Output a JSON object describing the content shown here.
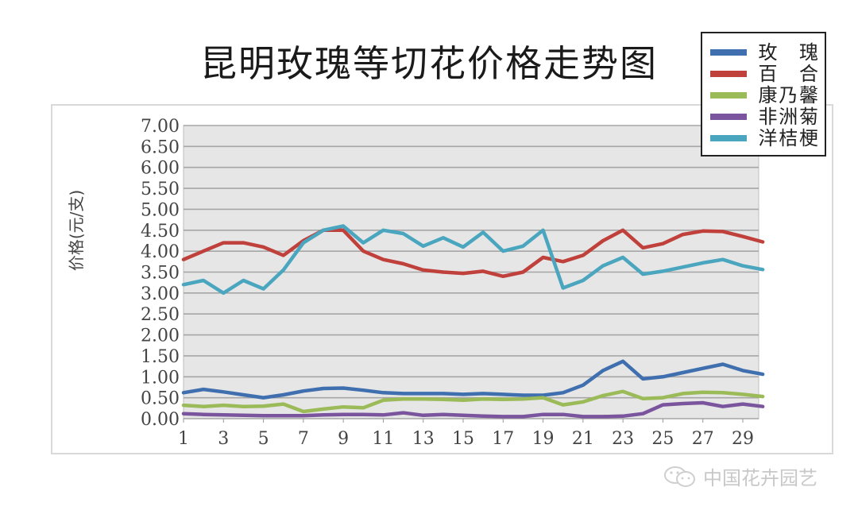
{
  "chart_data": {
    "type": "line",
    "title": "昆明玫瑰等切花价格走势图",
    "xlabel": "",
    "ylabel": "价格(元/支)",
    "ylim": [
      0,
      7
    ],
    "yticks": [
      "0.00",
      "0.50",
      "1.00",
      "1.50",
      "2.00",
      "2.50",
      "3.00",
      "3.50",
      "4.00",
      "4.50",
      "5.00",
      "5.50",
      "6.00",
      "6.50",
      "7.00"
    ],
    "xtick_labels": [
      "1",
      "3",
      "5",
      "7",
      "9",
      "11",
      "13",
      "15",
      "17",
      "19",
      "21",
      "23",
      "25",
      "27",
      "29"
    ],
    "x": [
      1,
      2,
      3,
      4,
      5,
      6,
      7,
      8,
      9,
      10,
      11,
      12,
      13,
      14,
      15,
      16,
      17,
      18,
      19,
      20,
      21,
      22,
      23,
      24,
      25,
      26,
      27,
      28,
      29,
      30
    ],
    "grid": true,
    "legend_position": "top-right",
    "series": [
      {
        "name": "玫瑰",
        "color": "#3f6fae",
        "values": [
          0.62,
          0.7,
          0.64,
          0.57,
          0.5,
          0.57,
          0.66,
          0.72,
          0.73,
          0.68,
          0.62,
          0.6,
          0.6,
          0.6,
          0.58,
          0.6,
          0.58,
          0.56,
          0.56,
          0.62,
          0.8,
          1.15,
          1.37,
          0.95,
          1.0,
          1.1,
          1.2,
          1.3,
          1.15,
          1.06
        ]
      },
      {
        "name": "百合",
        "color": "#c0403c",
        "values": [
          3.8,
          4.0,
          4.2,
          4.2,
          4.1,
          3.9,
          4.25,
          4.5,
          4.5,
          4.0,
          3.8,
          3.7,
          3.55,
          3.5,
          3.47,
          3.52,
          3.4,
          3.5,
          3.85,
          3.75,
          3.9,
          4.25,
          4.5,
          4.08,
          4.18,
          4.4,
          4.48,
          4.47,
          4.35,
          4.22
        ]
      },
      {
        "name": "康乃馨",
        "color": "#9bbb59",
        "values": [
          0.32,
          0.29,
          0.32,
          0.29,
          0.3,
          0.35,
          0.17,
          0.23,
          0.28,
          0.26,
          0.44,
          0.47,
          0.47,
          0.46,
          0.44,
          0.47,
          0.46,
          0.47,
          0.5,
          0.33,
          0.4,
          0.55,
          0.65,
          0.48,
          0.5,
          0.6,
          0.63,
          0.62,
          0.58,
          0.53
        ]
      },
      {
        "name": "非洲菊",
        "color": "#7a559e",
        "values": [
          0.12,
          0.1,
          0.09,
          0.08,
          0.07,
          0.07,
          0.07,
          0.09,
          0.1,
          0.1,
          0.09,
          0.14,
          0.08,
          0.1,
          0.08,
          0.06,
          0.05,
          0.05,
          0.1,
          0.1,
          0.05,
          0.05,
          0.06,
          0.12,
          0.33,
          0.36,
          0.38,
          0.29,
          0.35,
          0.29
        ]
      },
      {
        "name": "洋桔梗",
        "color": "#4aa6bf",
        "values": [
          3.2,
          3.3,
          3.0,
          3.3,
          3.1,
          3.55,
          4.2,
          4.5,
          4.6,
          4.2,
          4.5,
          4.42,
          4.12,
          4.32,
          4.1,
          4.45,
          4.0,
          4.12,
          4.5,
          3.12,
          3.3,
          3.65,
          3.85,
          3.45,
          3.52,
          3.62,
          3.72,
          3.8,
          3.65,
          3.56
        ]
      }
    ]
  },
  "legend": {
    "items": [
      {
        "label": "玫　瑰",
        "color": "#3f6fae"
      },
      {
        "label": "百　合",
        "color": "#c0403c"
      },
      {
        "label": "康乃馨",
        "color": "#9bbb59"
      },
      {
        "label": "非洲菊",
        "color": "#7a559e"
      },
      {
        "label": "洋桔梗",
        "color": "#4aa6bf"
      }
    ]
  },
  "watermark": {
    "text": "中国花卉园艺",
    "icon": "wechat-icon"
  },
  "colors": {
    "plot_bg": "#e6e6e6",
    "grid": "#a6a6a6",
    "axis_text": "#444444"
  }
}
